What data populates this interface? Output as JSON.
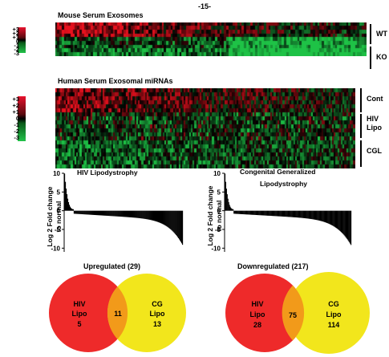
{
  "page_number": "-15-",
  "heatmaps": [
    {
      "title": "Mouse Serum Exosomes",
      "scale_labels": [
        "+3",
        "+2",
        "+1",
        "0",
        "-1",
        "-2",
        "-3"
      ],
      "groups": [
        {
          "label": "WT"
        },
        {
          "label": "KO"
        }
      ]
    },
    {
      "title": "Human Serum Exosomal miRNAs",
      "scale_labels": [
        "+3",
        "+2",
        "+1",
        "0",
        "-1",
        "-2",
        "-3"
      ],
      "groups": [
        {
          "label": "Cont"
        },
        {
          "label": "HIV\nLipo"
        },
        {
          "label": "CGL"
        }
      ]
    }
  ],
  "chart_data": [
    {
      "type": "bar",
      "subtype": "waterfall",
      "title": "HIV    Lipodystrophy",
      "ylabel_line1": "Log 2 Fold change",
      "ylabel_line2": "to normal",
      "ylim": [
        -11,
        10
      ],
      "yticks": [
        10,
        5,
        0,
        -5,
        -10
      ],
      "max_value": 9.5,
      "min_value": -9.5
    },
    {
      "type": "bar",
      "subtype": "waterfall",
      "title_line1": "Congenital Generalized",
      "title_line2": "Lipodystrophy",
      "ylabel_line1": "Log 2 Fold change",
      "ylabel_line2": "to normal",
      "ylim": [
        -11,
        10
      ],
      "yticks": [
        10,
        5,
        0,
        -5,
        -10
      ],
      "max_value": 9.5,
      "min_value": -9.5
    }
  ],
  "venns": [
    {
      "title": "Upregulated (29)",
      "left_label_1": "HIV",
      "left_label_2": "Lipo",
      "left_value": "5",
      "overlap_value": "11",
      "right_label_1": "CG",
      "right_label_2": "Lipo",
      "right_value": "13"
    },
    {
      "title": "Downregulated (217)",
      "left_label_1": "HIV",
      "left_label_2": "Lipo",
      "left_value": "28",
      "overlap_value": "75",
      "right_label_1": "CG",
      "right_label_2": "Lipo",
      "right_value": "114"
    }
  ],
  "colors": {
    "high": "#e8112d",
    "mid": "#000000",
    "low": "#22c24a",
    "venn_left": "#ee2a2a",
    "venn_right": "#f2e61c",
    "venn_overlap": "#f29a1a"
  }
}
